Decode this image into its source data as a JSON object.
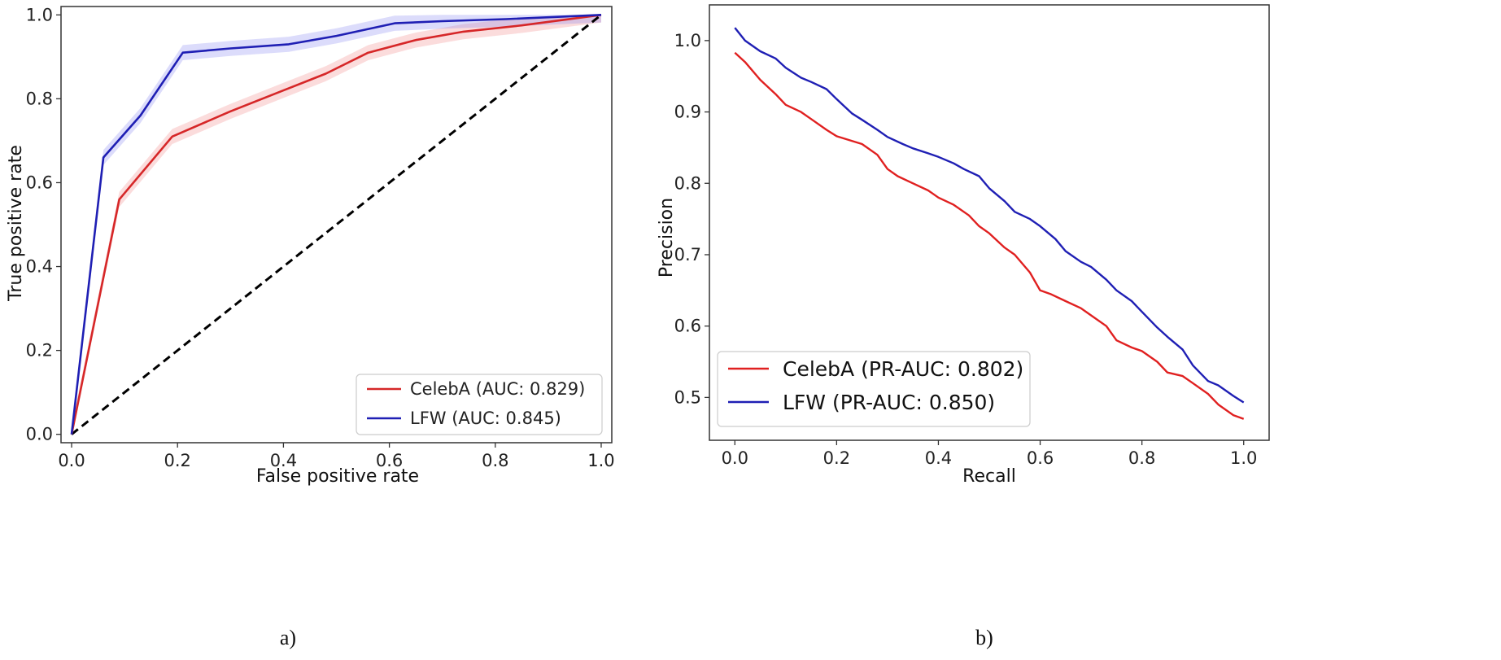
{
  "chart_data": [
    {
      "id": "roc",
      "type": "line",
      "caption": "a)",
      "xlabel": "False positive rate",
      "ylabel": "True positive rate",
      "xlim": [
        -0.02,
        1.02
      ],
      "ylim": [
        -0.02,
        1.02
      ],
      "xticks": [
        0.0,
        0.2,
        0.4,
        0.6,
        0.8,
        1.0
      ],
      "yticks": [
        0.0,
        0.2,
        0.4,
        0.6,
        0.8,
        1.0
      ],
      "tick_labels_x": [
        "0.0",
        "0.2",
        "0.4",
        "0.6",
        "0.8",
        "1.0"
      ],
      "tick_labels_y": [
        "0.0",
        "0.2",
        "0.4",
        "0.6",
        "0.8",
        "1.0"
      ],
      "legend_position": "bottom-right",
      "series": [
        {
          "name": "CelebA (AUC: 0.829)",
          "color": "#d62728",
          "band_color": "#f08080",
          "band": 0.018,
          "x": [
            0.0,
            0.09,
            0.19,
            0.3,
            0.4,
            0.48,
            0.56,
            0.65,
            0.74,
            0.85,
            1.0
          ],
          "y": [
            0.0,
            0.56,
            0.71,
            0.77,
            0.82,
            0.86,
            0.91,
            0.94,
            0.96,
            0.975,
            1.0
          ]
        },
        {
          "name": "LFW (AUC: 0.845)",
          "color": "#1f1fb4",
          "band_color": "#8080f0",
          "band": 0.018,
          "x": [
            0.0,
            0.06,
            0.13,
            0.21,
            0.3,
            0.41,
            0.5,
            0.61,
            0.7,
            0.82,
            1.0
          ],
          "y": [
            0.0,
            0.66,
            0.76,
            0.91,
            0.92,
            0.93,
            0.95,
            0.98,
            0.985,
            0.99,
            1.0
          ]
        }
      ],
      "reference_line": {
        "x": [
          0.0,
          1.0
        ],
        "y": [
          0.0,
          1.0
        ],
        "style": "dashed",
        "color": "#000000"
      }
    },
    {
      "id": "pr",
      "type": "line",
      "caption": "b)",
      "xlabel": "Recall",
      "ylabel": "Precision",
      "xlim": [
        -0.05,
        1.05
      ],
      "ylim": [
        0.44,
        1.05
      ],
      "xticks": [
        0.0,
        0.2,
        0.4,
        0.6,
        0.8,
        1.0
      ],
      "yticks": [
        0.5,
        0.6,
        0.7,
        0.8,
        0.9,
        1.0
      ],
      "tick_labels_x": [
        "0.0",
        "0.2",
        "0.4",
        "0.6",
        "0.8",
        "1.0"
      ],
      "tick_labels_y": [
        "0.5",
        "0.6",
        "0.7",
        "0.8",
        "0.9",
        "1.0"
      ],
      "legend_position": "bottom-left",
      "series": [
        {
          "name": "CelebA (PR-AUC: 0.802)",
          "color": "#e02020",
          "x": [
            0.0,
            0.02,
            0.05,
            0.08,
            0.1,
            0.13,
            0.15,
            0.18,
            0.2,
            0.25,
            0.28,
            0.3,
            0.32,
            0.35,
            0.38,
            0.4,
            0.43,
            0.46,
            0.48,
            0.5,
            0.53,
            0.55,
            0.58,
            0.6,
            0.62,
            0.65,
            0.68,
            0.7,
            0.73,
            0.75,
            0.78,
            0.8,
            0.83,
            0.85,
            0.88,
            0.9,
            0.93,
            0.95,
            0.98,
            1.0
          ],
          "y": [
            0.983,
            0.97,
            0.945,
            0.925,
            0.91,
            0.9,
            0.89,
            0.875,
            0.866,
            0.855,
            0.84,
            0.82,
            0.81,
            0.8,
            0.79,
            0.78,
            0.77,
            0.755,
            0.74,
            0.73,
            0.71,
            0.7,
            0.675,
            0.65,
            0.645,
            0.635,
            0.625,
            0.615,
            0.6,
            0.58,
            0.57,
            0.565,
            0.55,
            0.535,
            0.53,
            0.52,
            0.505,
            0.49,
            0.475,
            0.47
          ]
        },
        {
          "name": "LFW (PR-AUC: 0.850)",
          "color": "#1f1fb4",
          "x": [
            0.0,
            0.02,
            0.05,
            0.08,
            0.1,
            0.13,
            0.15,
            0.18,
            0.2,
            0.23,
            0.25,
            0.28,
            0.3,
            0.33,
            0.35,
            0.38,
            0.4,
            0.43,
            0.45,
            0.48,
            0.5,
            0.53,
            0.55,
            0.58,
            0.6,
            0.63,
            0.65,
            0.68,
            0.7,
            0.73,
            0.75,
            0.78,
            0.8,
            0.83,
            0.85,
            0.88,
            0.9,
            0.93,
            0.95,
            0.98,
            1.0
          ],
          "y": [
            1.018,
            1.0,
            0.985,
            0.975,
            0.962,
            0.948,
            0.942,
            0.932,
            0.918,
            0.898,
            0.889,
            0.875,
            0.865,
            0.855,
            0.849,
            0.842,
            0.837,
            0.828,
            0.82,
            0.81,
            0.793,
            0.775,
            0.76,
            0.75,
            0.74,
            0.722,
            0.705,
            0.69,
            0.683,
            0.665,
            0.65,
            0.635,
            0.62,
            0.598,
            0.585,
            0.567,
            0.545,
            0.523,
            0.517,
            0.502,
            0.493
          ]
        }
      ]
    }
  ]
}
